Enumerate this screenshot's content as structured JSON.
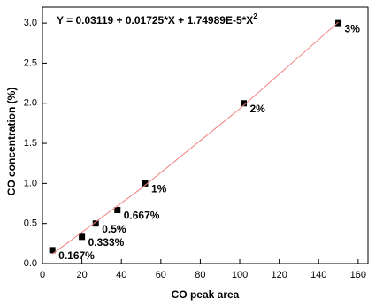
{
  "chart_data": {
    "type": "scatter",
    "equation": {
      "text": "Y = 0.03119 + 0.01725*X + 1.74989E-5*X",
      "superscript": "2"
    },
    "x_label": "CO peak area",
    "y_label": "CO concentration (%)",
    "xlim": [
      0,
      165
    ],
    "ylim": [
      0,
      3.2
    ],
    "xticks": [
      0,
      20,
      40,
      60,
      80,
      100,
      120,
      140,
      160
    ],
    "yticks": [
      {
        "value": 0,
        "label": "0.0"
      },
      {
        "value": 0.5,
        "label": "0.5"
      },
      {
        "value": 1,
        "label": "1.0"
      },
      {
        "value": 1.5,
        "label": "1.5"
      },
      {
        "value": 2,
        "label": "2.0"
      },
      {
        "value": 2.5,
        "label": "2.5"
      },
      {
        "value": 3,
        "label": "3.0"
      }
    ],
    "series": [
      {
        "color": "#000000",
        "x": [
          5,
          20,
          27,
          38,
          52,
          102,
          150
        ],
        "values": [
          0.167,
          0.333,
          0.5,
          0.667,
          1,
          2,
          3
        ],
        "value_labels": [
          "0.167%",
          "0.333%",
          "0.5%",
          "0.667%",
          "1%",
          "2%",
          "3%"
        ]
      },
      {
        "type": "line",
        "color": "#f08080",
        "x": [
          5,
          50,
          100,
          150
        ],
        "values": [
          0.118,
          0.937,
          1.931,
          3.012
        ]
      }
    ]
  }
}
